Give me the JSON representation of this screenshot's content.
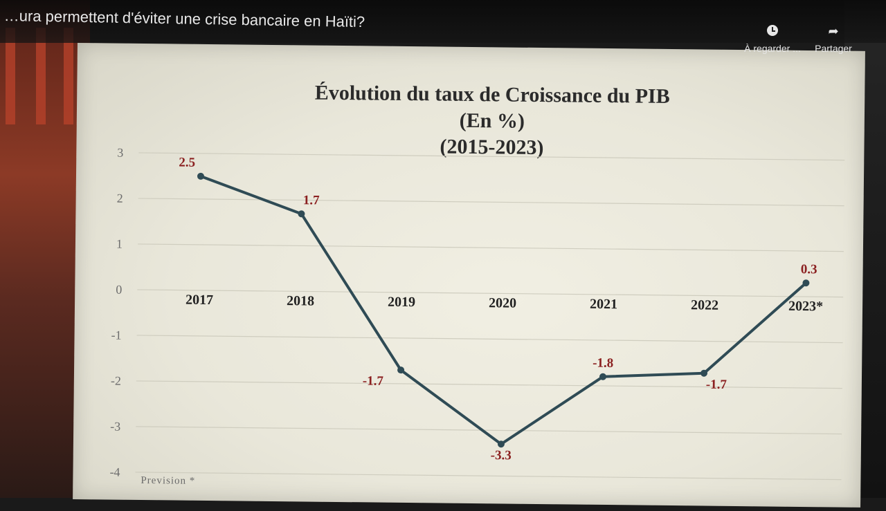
{
  "video": {
    "title": "…ura permettent d'éviter une crise bancaire en Haïti?",
    "actions": [
      {
        "label": "À regarder ...",
        "icon": "clock-icon"
      },
      {
        "label": "Partager",
        "icon": "share-icon"
      }
    ]
  },
  "chart_data": {
    "type": "line",
    "title": [
      "Évolution du taux de Croissance du PIB",
      "(En %)",
      "(2015-2023)"
    ],
    "categories": [
      "2017",
      "2018",
      "2019",
      "2020",
      "2021",
      "2022",
      "2023*"
    ],
    "values": [
      2.5,
      1.7,
      -1.7,
      -3.3,
      -1.8,
      -1.7,
      0.3
    ],
    "data_labels": [
      "2.5",
      "1.7",
      "-1.7",
      "-3.3",
      "-1.8",
      "-1.7",
      "0.3"
    ],
    "yticks": [
      "3",
      "2",
      "1",
      "0",
      "-1",
      "-2",
      "-3",
      "-4"
    ],
    "ylim": [
      -4,
      3
    ],
    "grid": true,
    "note": "Prevision *",
    "colors": {
      "line": "#2f4b55",
      "labels": "#8b2020"
    }
  }
}
